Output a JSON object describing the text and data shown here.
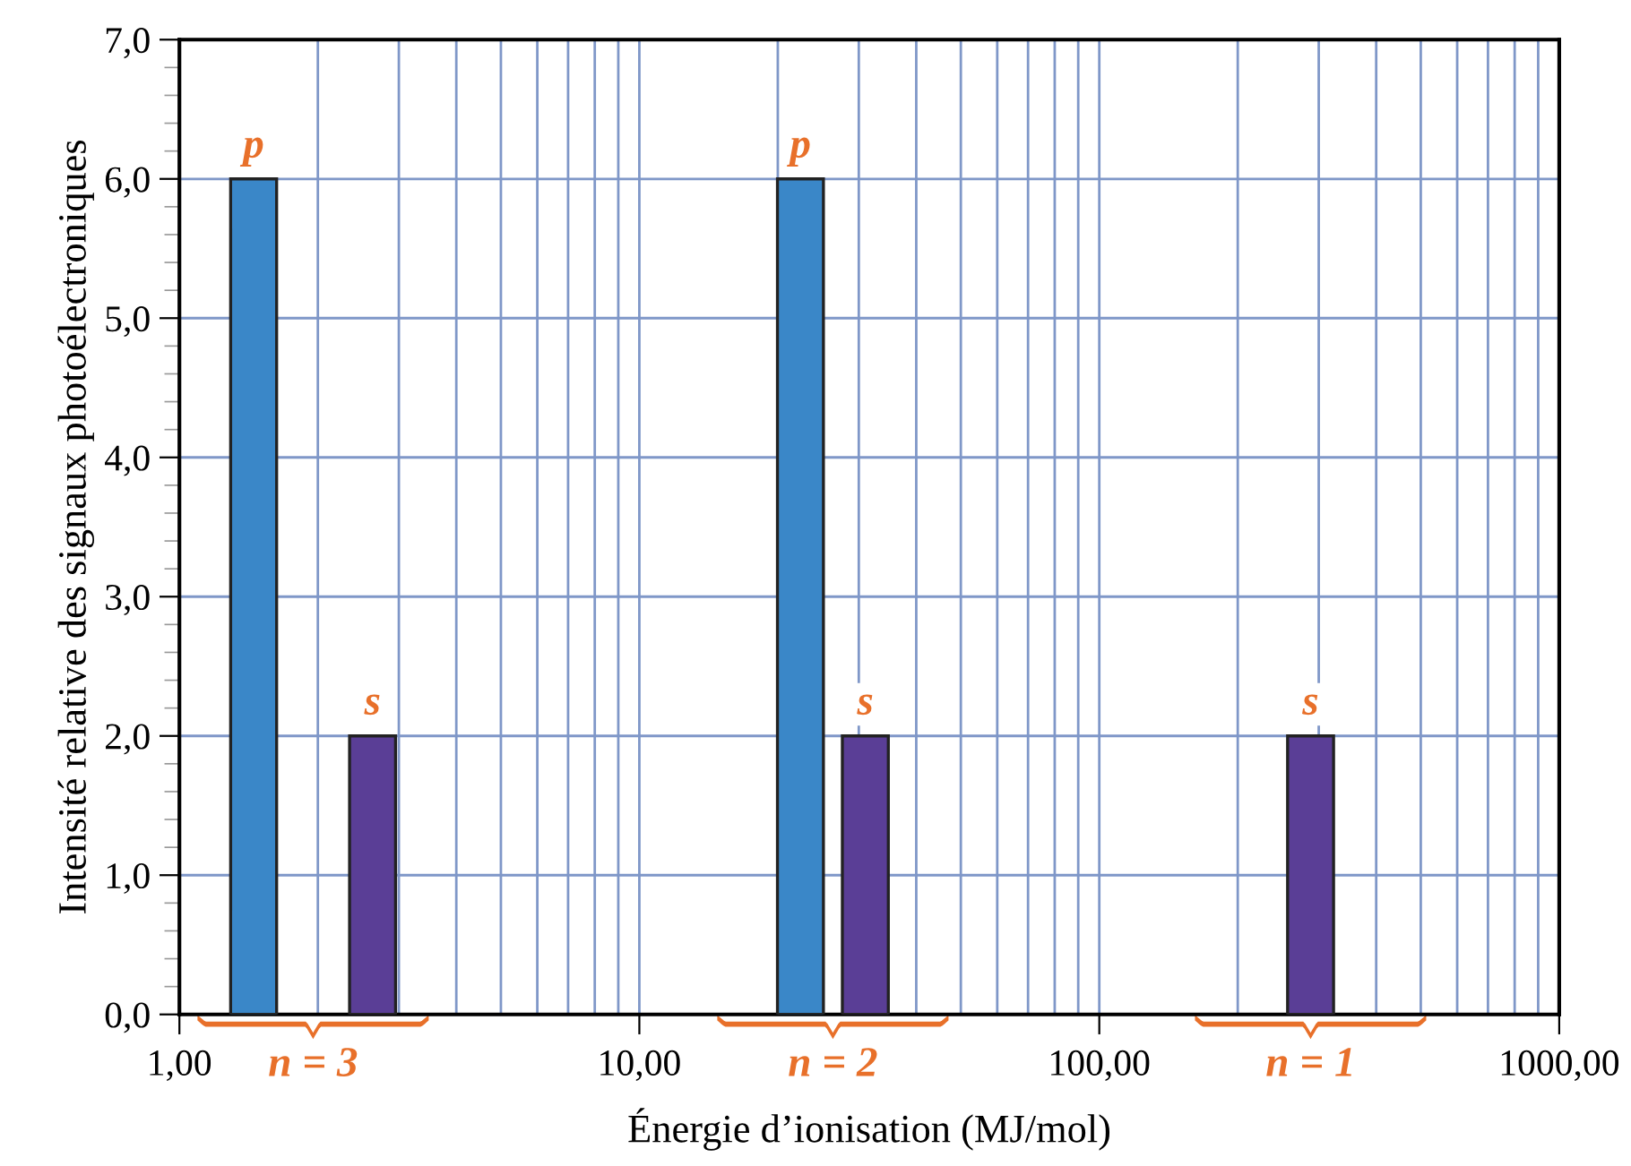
{
  "chart_data": {
    "type": "bar",
    "xlabel": "Énergie d’ionisation (MJ/mol)",
    "ylabel": "Intensité relative des signaux photoélectroniques",
    "log": "x",
    "xlim": [
      1,
      1000
    ],
    "xticks": [
      {
        "value": 1,
        "label": "1,00"
      },
      {
        "value": 10,
        "label": "10,00"
      },
      {
        "value": 100,
        "label": "100,00"
      },
      {
        "value": 1000,
        "label": "1000,00"
      }
    ],
    "ylim": [
      0,
      7
    ],
    "yticks": [
      {
        "value": 0,
        "label": "0,0"
      },
      {
        "value": 1,
        "label": "1,0"
      },
      {
        "value": 2,
        "label": "2,0"
      },
      {
        "value": 3,
        "label": "3,0"
      },
      {
        "value": 4,
        "label": "4,0"
      },
      {
        "value": 5,
        "label": "5,0"
      },
      {
        "value": 6,
        "label": "6,0"
      },
      {
        "value": 7,
        "label": "7,0"
      }
    ],
    "grid": true,
    "legend": false,
    "series": [
      {
        "name": "p",
        "color": "#3a87c8",
        "x": [
          1.45,
          22.4
        ],
        "values": [
          6,
          6
        ]
      },
      {
        "name": "s",
        "color": "#5a3e96",
        "x": [
          2.63,
          31.0,
          288
        ],
        "values": [
          2,
          2,
          2
        ]
      }
    ],
    "annotations": [
      "n = 3",
      "n = 2",
      "n = 1"
    ]
  }
}
